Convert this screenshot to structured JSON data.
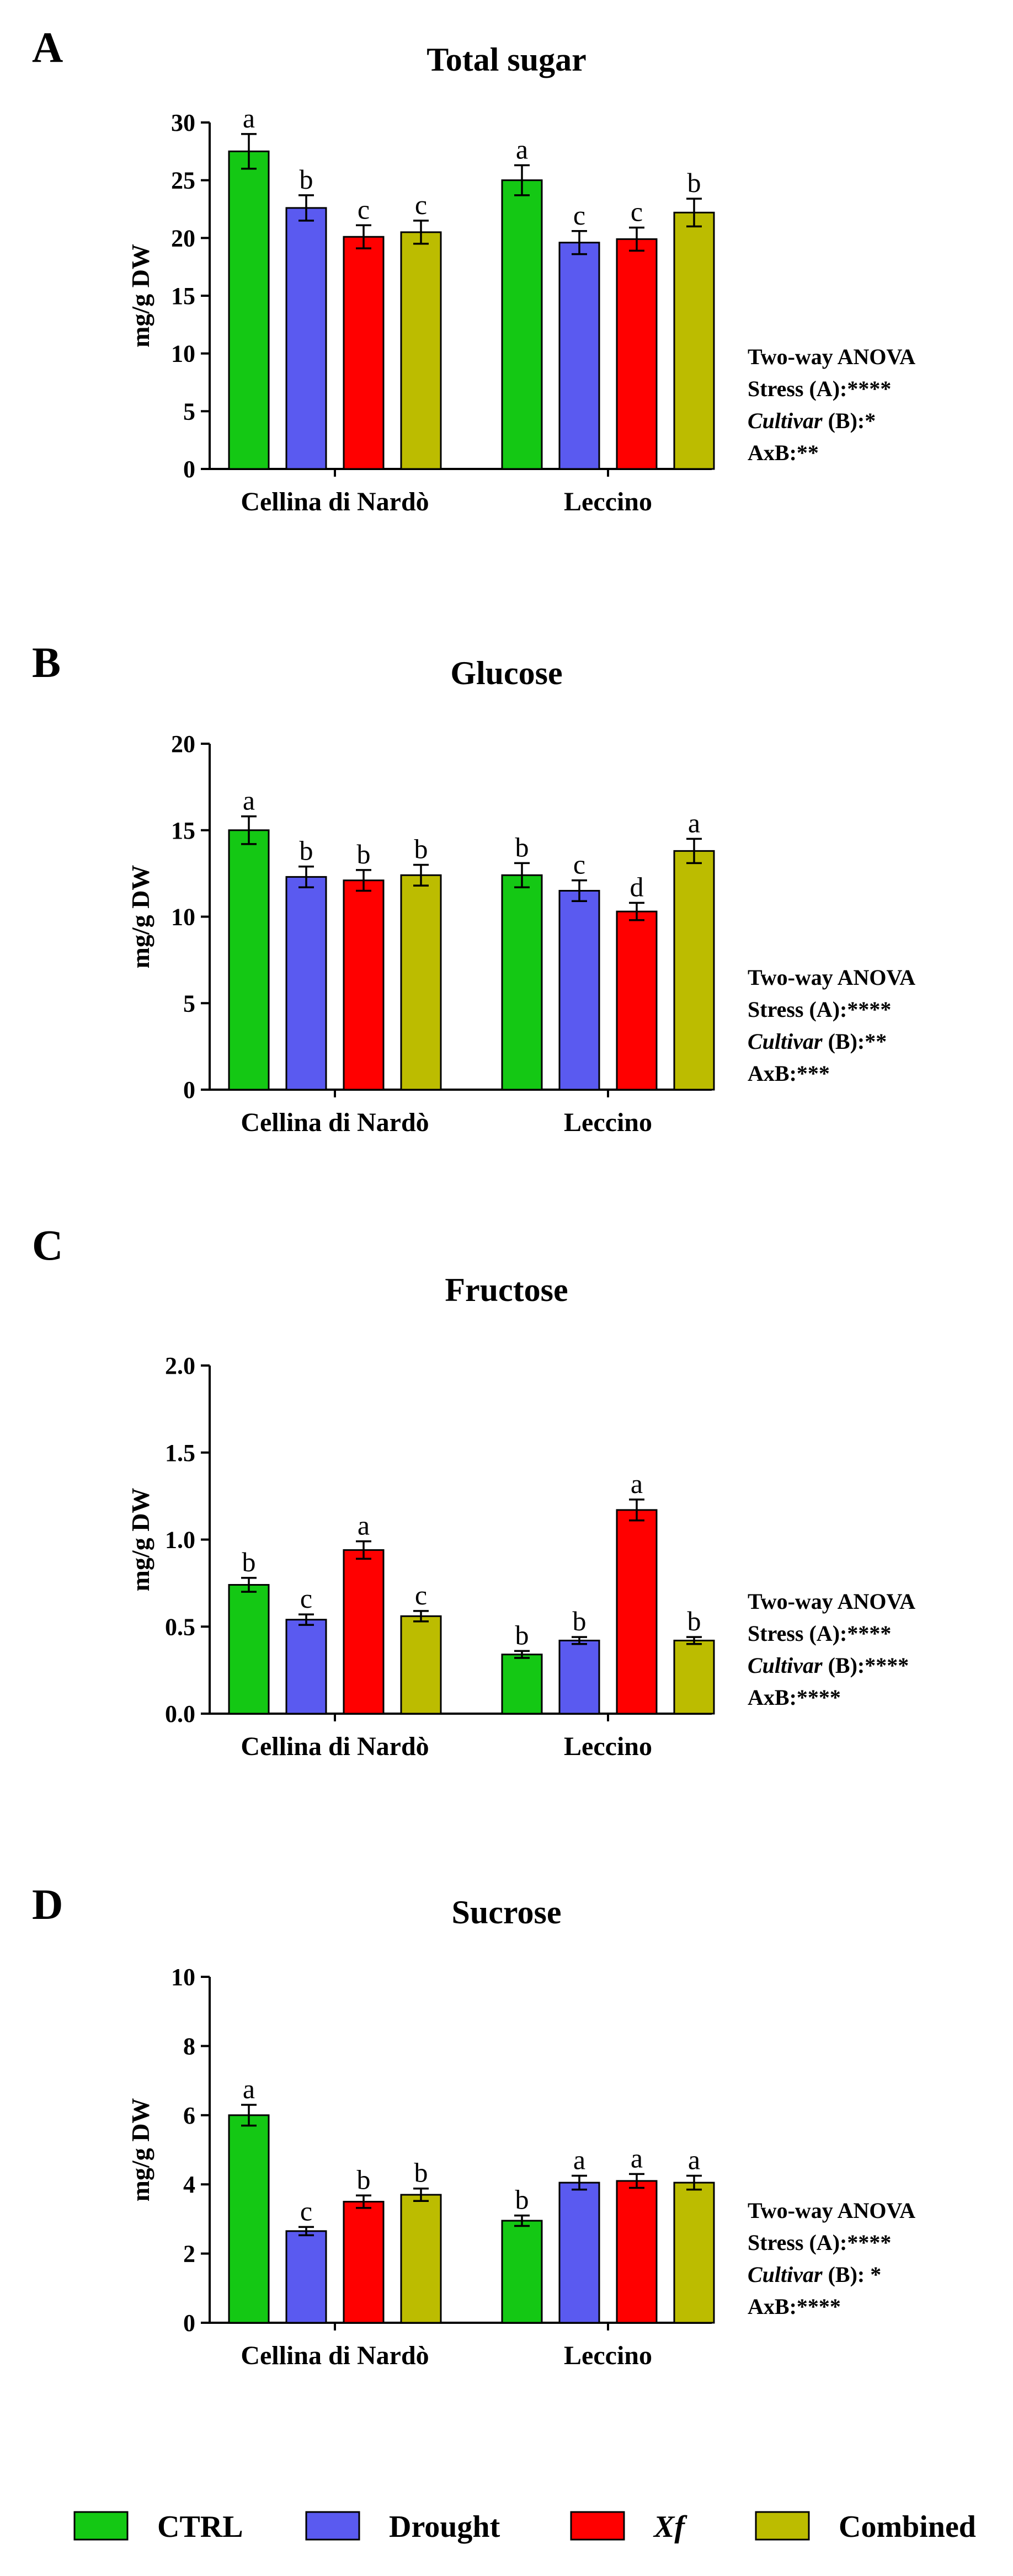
{
  "legend": {
    "items": [
      {
        "label": "CTRL",
        "color": "#14c814",
        "italic": false
      },
      {
        "label": "Drought",
        "color": "#5a5af0",
        "italic": false
      },
      {
        "label": "Xf",
        "color": "#ff0000",
        "italic": true
      },
      {
        "label": "Combined",
        "color": "#bcbc00",
        "italic": false
      }
    ]
  },
  "chart_data": [
    {
      "panel": "A",
      "type": "bar",
      "title": "Total sugar",
      "ylabel": "mg/g DW",
      "ylim": [
        0,
        30
      ],
      "yticks": [
        0,
        5,
        10,
        15,
        20,
        25,
        30
      ],
      "categories": [
        "Cellina di Nardò",
        "Leccino"
      ],
      "series": [
        {
          "name": "CTRL",
          "values": [
            27.5,
            25.0
          ],
          "errors": [
            1.5,
            1.3
          ],
          "letters": [
            "a",
            "a"
          ]
        },
        {
          "name": "Drought",
          "values": [
            22.6,
            19.6
          ],
          "errors": [
            1.1,
            1.0
          ],
          "letters": [
            "b",
            "c"
          ]
        },
        {
          "name": "Xf",
          "values": [
            20.1,
            19.9
          ],
          "errors": [
            1.0,
            1.0
          ],
          "letters": [
            "c",
            "c"
          ]
        },
        {
          "name": "Combined",
          "values": [
            20.5,
            22.2
          ],
          "errors": [
            1.0,
            1.2
          ],
          "letters": [
            "c",
            "b"
          ]
        }
      ],
      "anova": {
        "header": "Two-way ANOVA",
        "stress": "Stress (A):****",
        "cultivar_word": "Cultivar",
        "cultivar_rest": " (B):*",
        "interaction": "AxB:**"
      }
    },
    {
      "panel": "B",
      "type": "bar",
      "title": "Glucose",
      "ylabel": "mg/g DW",
      "ylim": [
        0,
        20
      ],
      "yticks": [
        0,
        5,
        10,
        15,
        20
      ],
      "categories": [
        "Cellina di Nardò",
        "Leccino"
      ],
      "series": [
        {
          "name": "CTRL",
          "values": [
            15.0,
            12.4
          ],
          "errors": [
            0.8,
            0.7
          ],
          "letters": [
            "a",
            "b"
          ]
        },
        {
          "name": "Drought",
          "values": [
            12.3,
            11.5
          ],
          "errors": [
            0.6,
            0.6
          ],
          "letters": [
            "b",
            "c"
          ]
        },
        {
          "name": "Xf",
          "values": [
            12.1,
            10.3
          ],
          "errors": [
            0.6,
            0.5
          ],
          "letters": [
            "b",
            "d"
          ]
        },
        {
          "name": "Combined",
          "values": [
            12.4,
            13.8
          ],
          "errors": [
            0.6,
            0.7
          ],
          "letters": [
            "b",
            "a"
          ]
        }
      ],
      "anova": {
        "header": "Two-way ANOVA",
        "stress": "Stress (A):****",
        "cultivar_word": "Cultivar",
        "cultivar_rest": " (B):**",
        "interaction": "AxB:***"
      }
    },
    {
      "panel": "C",
      "type": "bar",
      "title": "Fructose",
      "ylabel": "mg/g DW",
      "ylim": [
        0,
        2.0
      ],
      "yticks": [
        "0.0",
        "0.5",
        "1.0",
        "1.5",
        "2.0"
      ],
      "categories": [
        "Cellina di Nardò",
        "Leccino"
      ],
      "series": [
        {
          "name": "CTRL",
          "values": [
            0.74,
            0.34
          ],
          "errors": [
            0.04,
            0.02
          ],
          "letters": [
            "b",
            "b"
          ]
        },
        {
          "name": "Drought",
          "values": [
            0.54,
            0.42
          ],
          "errors": [
            0.03,
            0.02
          ],
          "letters": [
            "c",
            "b"
          ]
        },
        {
          "name": "Xf",
          "values": [
            0.94,
            1.17
          ],
          "errors": [
            0.05,
            0.06
          ],
          "letters": [
            "a",
            "a"
          ]
        },
        {
          "name": "Combined",
          "values": [
            0.56,
            0.42
          ],
          "errors": [
            0.03,
            0.02
          ],
          "letters": [
            "c",
            "b"
          ]
        }
      ],
      "anova": {
        "header": "Two-way ANOVA",
        "stress": "Stress (A):****",
        "cultivar_word": "Cultivar",
        "cultivar_rest": " (B):****",
        "interaction": "AxB:****"
      }
    },
    {
      "panel": "D",
      "type": "bar",
      "title": "Sucrose",
      "ylabel": "mg/g DW",
      "ylim": [
        0,
        10
      ],
      "yticks": [
        0,
        2,
        4,
        6,
        8,
        10
      ],
      "categories": [
        "Cellina di Nardò",
        "Leccino"
      ],
      "series": [
        {
          "name": "CTRL",
          "values": [
            6.0,
            2.95
          ],
          "errors": [
            0.3,
            0.15
          ],
          "letters": [
            "a",
            "b"
          ]
        },
        {
          "name": "Drought",
          "values": [
            2.65,
            4.05
          ],
          "errors": [
            0.12,
            0.2
          ],
          "letters": [
            "c",
            "a"
          ]
        },
        {
          "name": "Xf",
          "values": [
            3.5,
            4.1
          ],
          "errors": [
            0.18,
            0.2
          ],
          "letters": [
            "b",
            "a"
          ]
        },
        {
          "name": "Combined",
          "values": [
            3.7,
            4.05
          ],
          "errors": [
            0.18,
            0.2
          ],
          "letters": [
            "b",
            "a"
          ]
        }
      ],
      "anova": {
        "header": "Two-way ANOVA",
        "stress": "Stress (A):****",
        "cultivar_word": "Cultivar",
        "cultivar_rest": " (B): *",
        "interaction": "AxB:****"
      }
    }
  ]
}
